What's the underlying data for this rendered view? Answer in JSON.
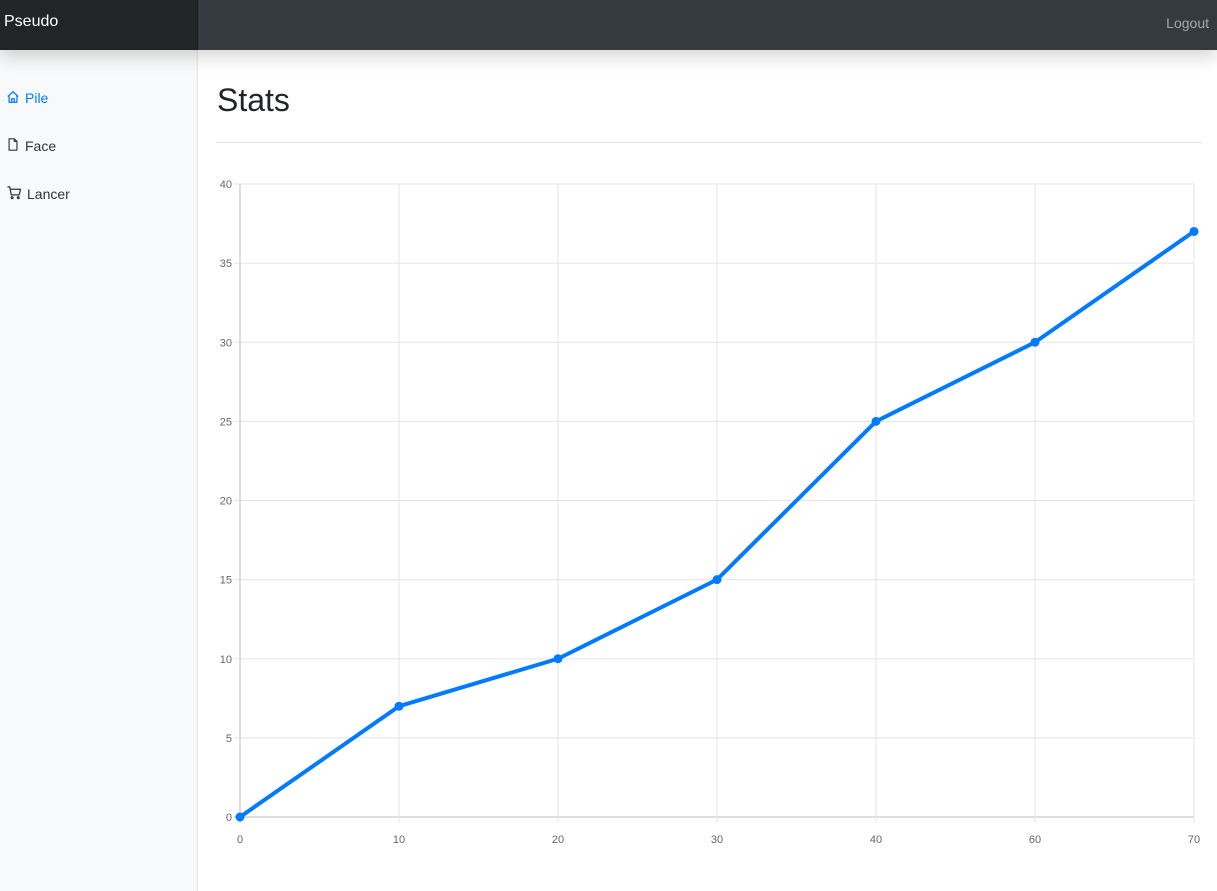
{
  "header": {
    "brand": "Pseudo",
    "logout_label": "Logout"
  },
  "sidebar": {
    "items": [
      {
        "label": "Pile",
        "icon": "home-icon",
        "active": true
      },
      {
        "label": "Face",
        "icon": "file-icon",
        "active": false
      },
      {
        "label": "Lancer",
        "icon": "cart-icon",
        "active": false
      }
    ]
  },
  "main": {
    "title": "Stats"
  },
  "colors": {
    "accent": "#007bff",
    "navbar": "#343a40",
    "brand_bg": "#222528",
    "sidebar_bg": "#f8f9fa",
    "grid": "#e5e5e5"
  },
  "chart_data": {
    "type": "line",
    "x": [
      0,
      10,
      20,
      30,
      40,
      60,
      70
    ],
    "series": [
      {
        "values": [
          0,
          7,
          10,
          15,
          25,
          30,
          37
        ]
      }
    ],
    "x_tick_labels": [
      "0",
      "10",
      "20",
      "30",
      "40",
      "60",
      "70"
    ],
    "y_ticks": [
      0,
      5,
      10,
      15,
      20,
      25,
      30,
      35,
      40
    ],
    "ylim": [
      0,
      40
    ],
    "grid": true,
    "legend": "none",
    "title": "",
    "xlabel": "",
    "ylabel": ""
  }
}
